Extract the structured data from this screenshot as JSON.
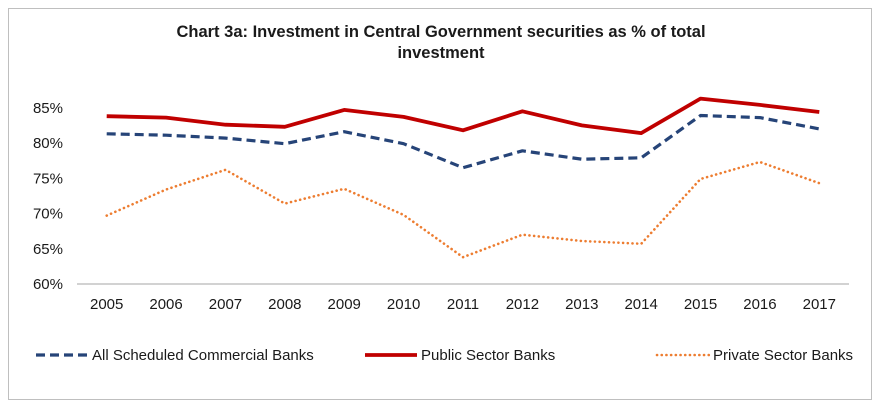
{
  "chart_data": {
    "type": "line",
    "title_lines": [
      "Chart 3a: Investment in Central Government securities as % of total",
      "investment"
    ],
    "categories": [
      "2005",
      "2006",
      "2007",
      "2008",
      "2009",
      "2010",
      "2011",
      "2012",
      "2013",
      "2014",
      "2015",
      "2016",
      "2017"
    ],
    "y_ticks": [
      "60%",
      "65%",
      "70%",
      "75%",
      "80%",
      "85%"
    ],
    "ylim": [
      60,
      87
    ],
    "grid": false,
    "legend_position": "bottom",
    "series": [
      {
        "name": "All Scheduled Commercial Banks",
        "color": "#264478",
        "style": "dashed",
        "values": [
          81.3,
          81.1,
          80.7,
          79.9,
          81.6,
          79.9,
          76.5,
          78.9,
          77.7,
          77.9,
          83.9,
          83.6,
          82.0
        ]
      },
      {
        "name": "Public Sector Banks",
        "color": "#c00000",
        "style": "solid",
        "values": [
          83.8,
          83.6,
          82.6,
          82.3,
          84.7,
          83.7,
          81.8,
          84.5,
          82.5,
          81.4,
          86.3,
          85.4,
          84.4
        ]
      },
      {
        "name": "Private Sector Banks",
        "color": "#ed7d31",
        "style": "dotted",
        "values": [
          69.7,
          73.4,
          76.2,
          71.4,
          73.5,
          69.8,
          63.8,
          67.0,
          66.1,
          65.7,
          74.9,
          77.3,
          74.3
        ]
      }
    ]
  }
}
